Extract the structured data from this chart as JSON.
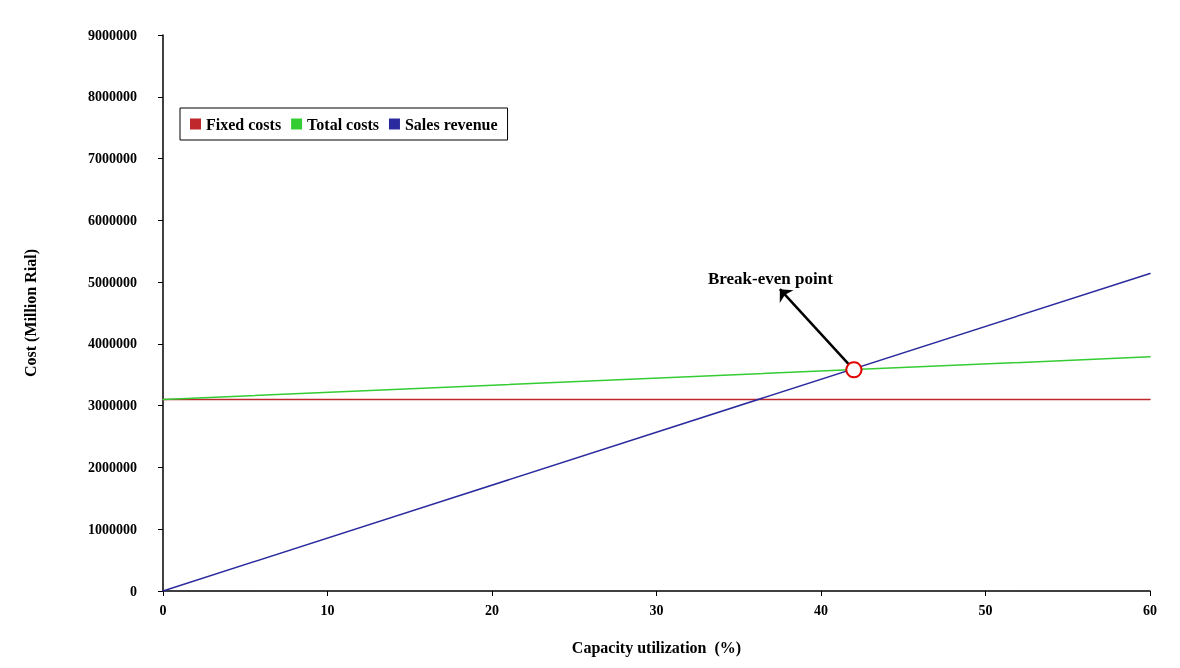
{
  "chart_data": {
    "type": "line",
    "xlabel": "Capacity utilization  (%)",
    "ylabel": "Cost (Million Rial)",
    "xlim": [
      0,
      60
    ],
    "xticks": [
      0,
      10,
      20,
      30,
      40,
      50,
      60
    ],
    "ylim": [
      0,
      9000000
    ],
    "yticks": [
      0,
      1000000,
      2000000,
      3000000,
      4000000,
      5000000,
      6000000,
      7000000,
      8000000,
      9000000
    ],
    "grid": false,
    "legend": "top left",
    "marker": "none",
    "line_style": "solid",
    "x": [
      0,
      60
    ],
    "series": [
      {
        "name": "Fixed costs",
        "color": "#c0272d",
        "values": [
          3100000,
          3100000
        ]
      },
      {
        "name": "Total costs",
        "color": "#33cc33",
        "values": [
          3100000,
          3790000
        ]
      },
      {
        "name": "Sales revenue",
        "color": "#2a2a9e",
        "values": [
          0,
          5140000
        ]
      }
    ],
    "annotations": [
      {
        "text": "Break-even point",
        "x": 42,
        "y": 3580000
      }
    ]
  }
}
